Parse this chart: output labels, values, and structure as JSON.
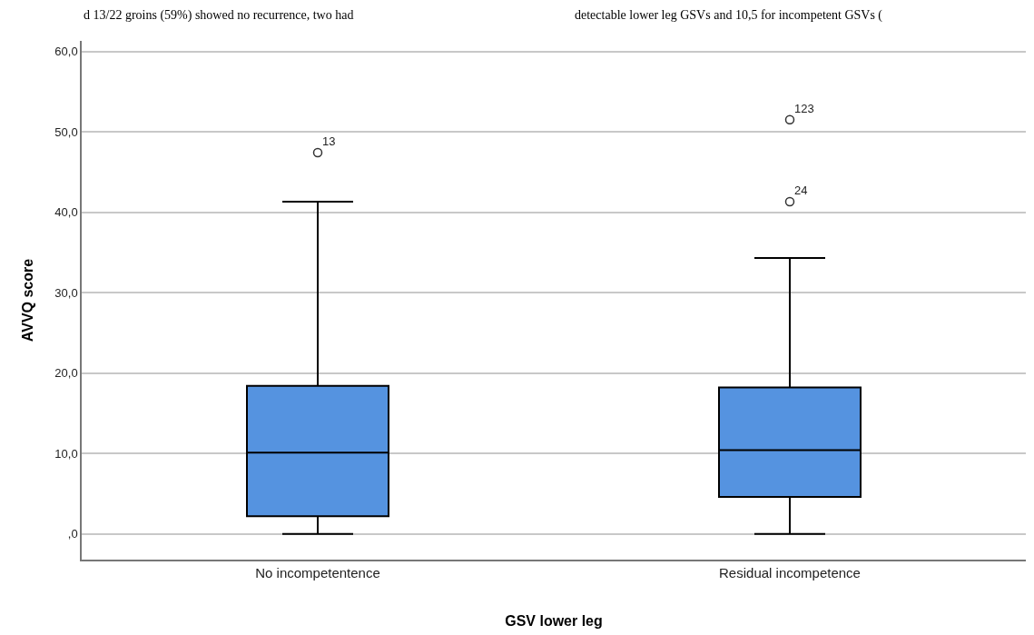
{
  "chart_data": {
    "type": "box",
    "xlabel": "GSV lower leg",
    "ylabel": "AVVQ score",
    "categories": [
      "No incompetentence",
      "Residual incompetence"
    ],
    "boxes": [
      {
        "low": 0,
        "q1": 2.2,
        "median": 10.1,
        "q3": 18.4,
        "high": 41.3,
        "outliers": [
          47.4
        ]
      },
      {
        "low": 0,
        "q1": 4.6,
        "median": 10.4,
        "q3": 18.2,
        "high": 34.3,
        "outliers": [
          51.5,
          41.3
        ]
      }
    ],
    "color": "#5593e0",
    "marker": "circle",
    "ylim": [
      -3.2,
      61.3
    ],
    "yticks": [
      {
        "value": 0,
        "label": ",0"
      },
      {
        "value": 10,
        "label": "10,0"
      },
      {
        "value": 20,
        "label": "20,0"
      },
      {
        "value": 30,
        "label": "30,0"
      },
      {
        "value": 40,
        "label": "40,0"
      },
      {
        "value": 50,
        "label": "50,0"
      },
      {
        "value": 60,
        "label": "60,0"
      }
    ],
    "grid": "y",
    "annotations": [
      "13",
      "123",
      "24",
      "d 13/22 groins (59%) showed no recurrence, two had",
      "detectable lower leg GSVs and 10,5 for incompetent GSVs ("
    ]
  }
}
